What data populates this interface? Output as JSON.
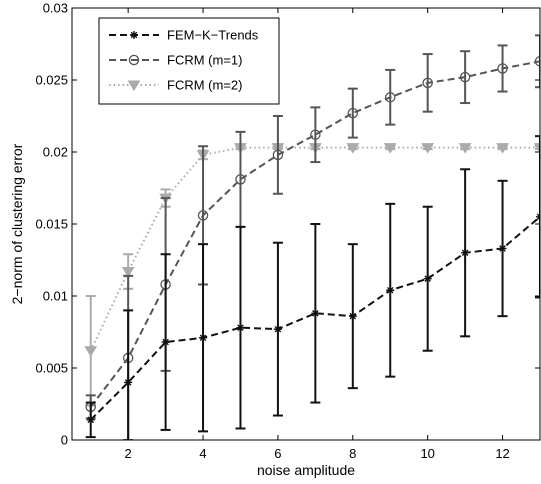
{
  "chart_data": {
    "type": "line",
    "xlabel": "noise amplitude",
    "ylabel": "2−norm of clustering error",
    "xlim": [
      0.5,
      13
    ],
    "ylim": [
      0,
      0.03
    ],
    "xticks": [
      2,
      4,
      6,
      8,
      10,
      12
    ],
    "xtick_labels": [
      "2",
      "4",
      "6",
      "8",
      "10",
      "12"
    ],
    "yticks": [
      0,
      0.005,
      0.01,
      0.015,
      0.02,
      0.025,
      0.03
    ],
    "ytick_labels": [
      "0",
      "0.005",
      "0.01",
      "0.015",
      "0.02",
      "0.025",
      "0.03"
    ],
    "grid": false,
    "legend_position": "top-left",
    "x": [
      1,
      2,
      3,
      4,
      5,
      6,
      7,
      8,
      9,
      10,
      11,
      12,
      13
    ],
    "series": [
      {
        "name": "FEM−K−Trends",
        "color": "#111111",
        "dash": "7,4",
        "marker": "asterisk",
        "values": [
          0.0014,
          0.004,
          0.0068,
          0.0071,
          0.0078,
          0.0077,
          0.0088,
          0.0086,
          0.0104,
          0.0112,
          0.013,
          0.0133,
          0.0155
        ],
        "error": [
          0.0012,
          0.005,
          0.0061,
          0.0065,
          0.007,
          0.006,
          0.0062,
          0.005,
          0.006,
          0.005,
          0.0058,
          0.0047,
          0.0056
        ]
      },
      {
        "name": "FCRM (m=1)",
        "color": "#555555",
        "dash": "7,4",
        "marker": "circle",
        "values": [
          0.0023,
          0.0057,
          0.0108,
          0.0156,
          0.0181,
          0.0198,
          0.0212,
          0.0227,
          0.0238,
          0.0248,
          0.0252,
          0.0258,
          0.0263
        ],
        "error": [
          0.0008,
          0.0057,
          0.006,
          0.0048,
          0.0033,
          0.0027,
          0.0019,
          0.0017,
          0.0019,
          0.002,
          0.0018,
          0.0016,
          0.0018
        ]
      },
      {
        "name": "FCRM (m=2)",
        "color": "#aaaaaa",
        "dash": "1.5,3",
        "marker": "triangle-down",
        "values": [
          0.0062,
          0.0117,
          0.0168,
          0.0198,
          0.0203,
          0.0203,
          0.0203,
          0.0203,
          0.0203,
          0.0203,
          0.0203,
          0.0203,
          0.0203
        ],
        "error": [
          0.0038,
          0.0012,
          0.0006,
          0.0003,
          0.0001,
          0.0001,
          0.0001,
          0.0001,
          0.0001,
          0.0001,
          0.0001,
          0.0001,
          0.0001
        ]
      }
    ]
  }
}
